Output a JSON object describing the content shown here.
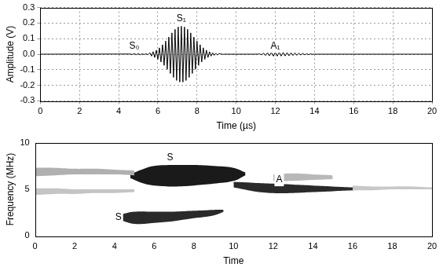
{
  "chart_data": [
    {
      "type": "line",
      "x_label": "Time (µs)",
      "y_label": "Amplitude (V)",
      "xlim": [
        0,
        20
      ],
      "xticks": [
        0,
        2,
        4,
        6,
        8,
        10,
        12,
        14,
        16,
        18,
        20
      ],
      "ylim": [
        -0.3,
        0.3
      ],
      "yticks": [
        -0.3,
        -0.2,
        -0.1,
        {
          "value": 0,
          "label": "0.0"
        },
        0.1,
        0.2,
        0.3
      ],
      "grid": true,
      "color": "#000000",
      "x": [
        0,
        4.6,
        4.7,
        4.8,
        4.9,
        5.0,
        5.1,
        5.2,
        5.3,
        5.4,
        5.5,
        5.6,
        5.68,
        5.76,
        5.84,
        5.92,
        6.0,
        6.08,
        6.16,
        6.24,
        6.32,
        6.4,
        6.48,
        6.56,
        6.64,
        6.72,
        6.8,
        6.88,
        6.96,
        7.04,
        7.12,
        7.2,
        7.28,
        7.36,
        7.44,
        7.52,
        7.6,
        7.68,
        7.76,
        7.84,
        7.92,
        8.0,
        8.08,
        8.16,
        8.24,
        8.32,
        8.4,
        8.48,
        8.56,
        8.64,
        8.72,
        8.8,
        8.88,
        8.96,
        9.04,
        9.12,
        9.2,
        9.3,
        9.4,
        11.1,
        11.2,
        11.3,
        11.4,
        11.5,
        11.6,
        11.7,
        11.8,
        11.9,
        12.0,
        12.1,
        12.2,
        12.3,
        12.4,
        12.5,
        12.6,
        12.7,
        12.8,
        12.9,
        13.0,
        13.1,
        13.2,
        13.3,
        13.4,
        13.5,
        13.6,
        13.7,
        13.8,
        13.9,
        14.0,
        20
      ],
      "values": [
        0,
        0.001,
        -0.002,
        0.003,
        -0.003,
        0.003,
        -0.003,
        0.002,
        -0.002,
        0.002,
        -0.003,
        0.009,
        -0.012,
        0.016,
        -0.021,
        0.026,
        -0.033,
        0.041,
        -0.05,
        0.061,
        -0.072,
        0.084,
        -0.097,
        0.11,
        -0.124,
        0.137,
        -0.149,
        0.16,
        -0.169,
        0.175,
        -0.179,
        0.18,
        -0.179,
        0.175,
        -0.169,
        0.16,
        -0.149,
        0.137,
        -0.124,
        0.11,
        -0.097,
        0.084,
        -0.072,
        0.061,
        -0.05,
        0.041,
        -0.033,
        0.026,
        -0.021,
        0.016,
        -0.012,
        0.009,
        -0.007,
        0.005,
        -0.004,
        0.003,
        0.002,
        -0.001,
        0,
        0,
        0.002,
        -0.004,
        0.006,
        -0.008,
        0.009,
        -0.01,
        0.011,
        -0.012,
        0.012,
        -0.012,
        0.012,
        -0.012,
        0.011,
        -0.011,
        0.01,
        -0.01,
        0.009,
        -0.008,
        0.008,
        -0.007,
        0.006,
        -0.005,
        0.005,
        -0.004,
        0.003,
        -0.003,
        0.002,
        -0.001,
        0,
        0
      ],
      "annotations": [
        {
          "text": "S₀",
          "x": 4.8,
          "y": 0.05
        },
        {
          "text": "S₁",
          "x": 7.2,
          "y": 0.23
        },
        {
          "text": "A₁",
          "x": 12.0,
          "y": 0.05
        }
      ]
    },
    {
      "type": "area",
      "x_label": "Time",
      "y_label": "Frequency (MHz)",
      "xlim": [
        0,
        20
      ],
      "xticks": [
        0,
        2,
        4,
        6,
        8,
        10,
        12,
        14,
        16,
        18,
        20
      ],
      "ylim": [
        0,
        10
      ],
      "yticks": [
        0,
        5,
        10
      ],
      "grid": false,
      "regions": [
        {
          "x": [
            0,
            1,
            2,
            3,
            4,
            5
          ],
          "low": [
            4.4,
            4.5,
            4.5,
            4.6,
            4.6,
            4.7
          ],
          "high": [
            5.1,
            5.1,
            5.0,
            5.0,
            5.0,
            5.0
          ],
          "color": "#c4c4c4"
        },
        {
          "x": [
            0,
            1,
            2,
            3,
            4,
            5
          ],
          "low": [
            6.4,
            6.5,
            6.6,
            6.6,
            6.6,
            6.5
          ],
          "high": [
            7.3,
            7.3,
            7.2,
            7.2,
            7.1,
            7.0
          ],
          "color": "#b0b0b0"
        },
        {
          "x": [
            12,
            13,
            14,
            15
          ],
          "low": [
            5.9,
            5.9,
            6.0,
            6.1
          ],
          "high": [
            6.6,
            6.7,
            6.6,
            6.5
          ],
          "color": "#b8b8b8"
        },
        {
          "x": [
            16,
            17,
            18,
            19,
            20
          ],
          "low": [
            4.9,
            4.9,
            5.0,
            5.0,
            5.0
          ],
          "high": [
            5.4,
            5.3,
            5.3,
            5.3,
            5.2
          ],
          "color": "#c8c8c8"
        },
        {
          "x": [
            10,
            11,
            12,
            13,
            14,
            15,
            16,
            17
          ],
          "low": [
            5.2,
            4.8,
            4.6,
            4.6,
            4.7,
            4.8,
            4.9,
            5.0
          ],
          "high": [
            5.8,
            5.7,
            5.6,
            5.5,
            5.4,
            5.3,
            5.2,
            5.1
          ],
          "color": "#2a2a2a"
        },
        {
          "x": [
            4.8,
            5.5,
            6,
            7,
            8,
            9,
            10,
            10.6
          ],
          "low": [
            6.2,
            5.6,
            5.4,
            5.3,
            5.4,
            5.6,
            5.9,
            6.5
          ],
          "high": [
            6.6,
            7.2,
            7.5,
            7.6,
            7.6,
            7.5,
            7.3,
            6.8
          ],
          "color": "#1a1a1a"
        },
        {
          "x": [
            4.3,
            5,
            6,
            7,
            8,
            9,
            9.5
          ],
          "low": [
            1.7,
            1.3,
            1.4,
            1.6,
            1.9,
            2.2,
            2.6
          ],
          "high": [
            2.3,
            2.6,
            2.6,
            2.6,
            2.7,
            2.8,
            2.8
          ],
          "color": "#2a2a2a"
        }
      ],
      "annotations": [
        {
          "text": "S",
          "x": 6.8,
          "y": 8.4
        },
        {
          "text": "S",
          "x": 4.2,
          "y": 2.0
        },
        {
          "text": "A",
          "x": 12.3,
          "y": 6.0
        }
      ]
    }
  ]
}
